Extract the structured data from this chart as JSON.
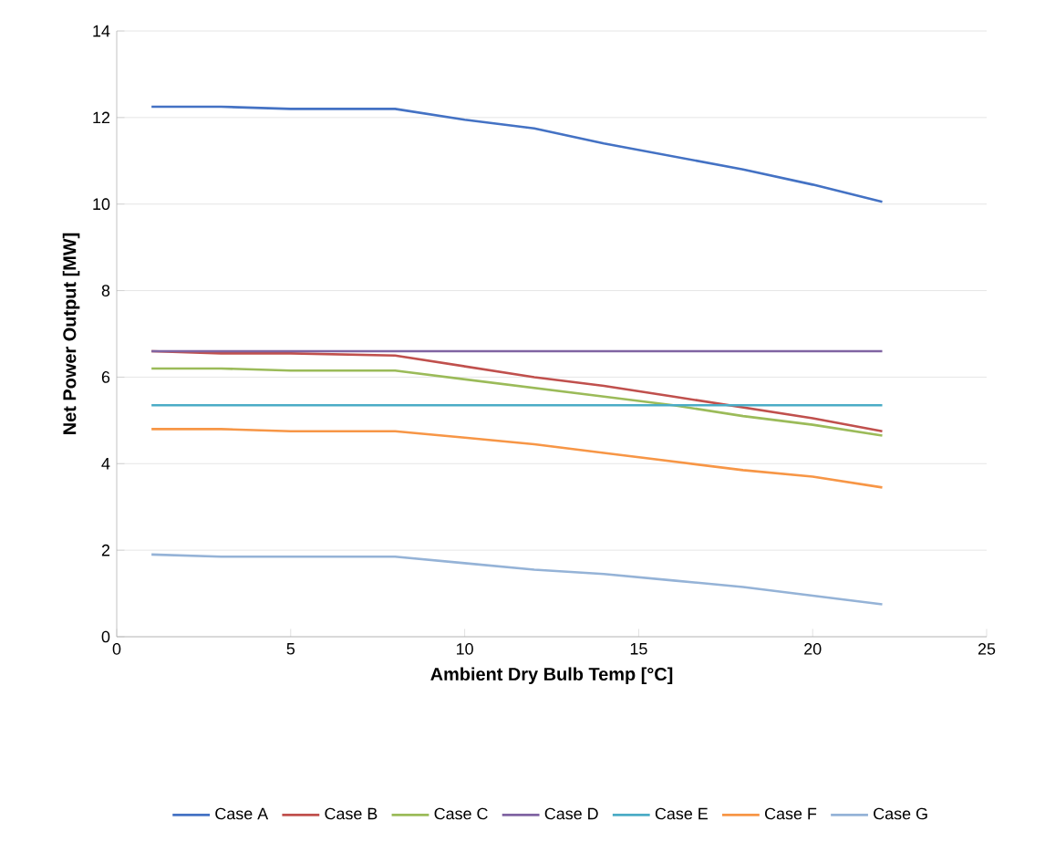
{
  "chart_data": {
    "type": "line",
    "xlabel": "Ambient Dry Bulb Temp [°C]",
    "ylabel": "Net Power Output [MW]",
    "x": [
      1,
      3,
      5,
      8,
      10,
      12,
      14,
      16,
      18,
      20,
      22
    ],
    "series": [
      {
        "name": "Case A",
        "color": "#4472c4",
        "values": [
          12.25,
          12.25,
          12.2,
          12.2,
          11.95,
          11.75,
          11.4,
          11.1,
          10.8,
          10.45,
          10.05
        ]
      },
      {
        "name": "Case B",
        "color": "#c0504d",
        "values": [
          6.6,
          6.55,
          6.55,
          6.5,
          6.25,
          6.0,
          5.8,
          5.55,
          5.3,
          5.05,
          4.75
        ]
      },
      {
        "name": "Case C",
        "color": "#9bbb59",
        "values": [
          6.2,
          6.2,
          6.15,
          6.15,
          5.95,
          5.75,
          5.55,
          5.35,
          5.1,
          4.9,
          4.65
        ]
      },
      {
        "name": "Case D",
        "color": "#8064a2",
        "values": [
          6.6,
          6.6,
          6.6,
          6.6,
          6.6,
          6.6,
          6.6,
          6.6,
          6.6,
          6.6,
          6.6
        ]
      },
      {
        "name": "Case E",
        "color": "#4bacc6",
        "values": [
          5.35,
          5.35,
          5.35,
          5.35,
          5.35,
          5.35,
          5.35,
          5.35,
          5.35,
          5.35,
          5.35
        ]
      },
      {
        "name": "Case F",
        "color": "#f79646",
        "values": [
          4.8,
          4.8,
          4.75,
          4.75,
          4.6,
          4.45,
          4.25,
          4.05,
          3.85,
          3.7,
          3.45
        ]
      },
      {
        "name": "Case G",
        "color": "#95b3d7",
        "values": [
          1.9,
          1.85,
          1.85,
          1.85,
          1.7,
          1.55,
          1.45,
          1.3,
          1.15,
          0.95,
          0.75
        ]
      }
    ],
    "xlim": [
      0,
      25
    ],
    "xticks": [
      0,
      5,
      10,
      15,
      20,
      25
    ],
    "ylim": [
      0,
      14
    ],
    "yticks": [
      0,
      2,
      4,
      6,
      8,
      10,
      12,
      14
    ],
    "grid": "y",
    "legend": "bottom",
    "marker": "none",
    "line_style": "solid"
  }
}
